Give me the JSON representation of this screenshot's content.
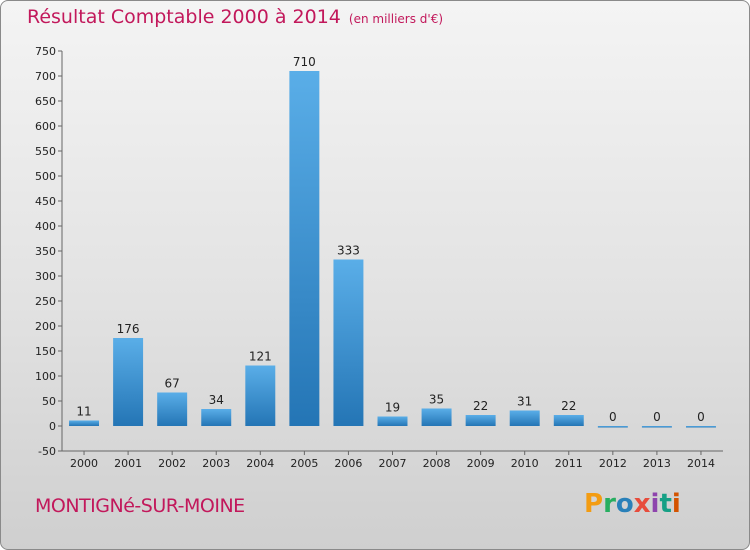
{
  "header": {
    "title": "Résultat Comptable 2000 à 2014",
    "subtitle": "(en milliers d'€)"
  },
  "footer": {
    "commune": "MONTIGNé-SUR-MOINE",
    "logo_text": "Proxiti"
  },
  "colors": {
    "title": "#c2185b",
    "bar_top": "#5aaee8",
    "bar_bottom": "#2475b5",
    "logo": [
      "#f39c12",
      "#27ae60",
      "#2980b9",
      "#e74c3c",
      "#8e44ad",
      "#16a085",
      "#d35400"
    ]
  },
  "chart_data": {
    "type": "bar",
    "categories": [
      "2000",
      "2001",
      "2002",
      "2003",
      "2004",
      "2005",
      "2006",
      "2007",
      "2008",
      "2009",
      "2010",
      "2011",
      "2012",
      "2013",
      "2014"
    ],
    "values": [
      11,
      176,
      67,
      34,
      121,
      710,
      333,
      19,
      35,
      22,
      31,
      22,
      0,
      0,
      0
    ],
    "title": "Résultat Comptable 2000 à 2014",
    "subtitle": "(en milliers d'€)",
    "xlabel": "",
    "ylabel": "",
    "ylim": [
      -50,
      750
    ],
    "yticks": [
      -50,
      0,
      50,
      100,
      150,
      200,
      250,
      300,
      350,
      400,
      450,
      500,
      550,
      600,
      650,
      700,
      750
    ],
    "grid": false,
    "legend": "none"
  }
}
